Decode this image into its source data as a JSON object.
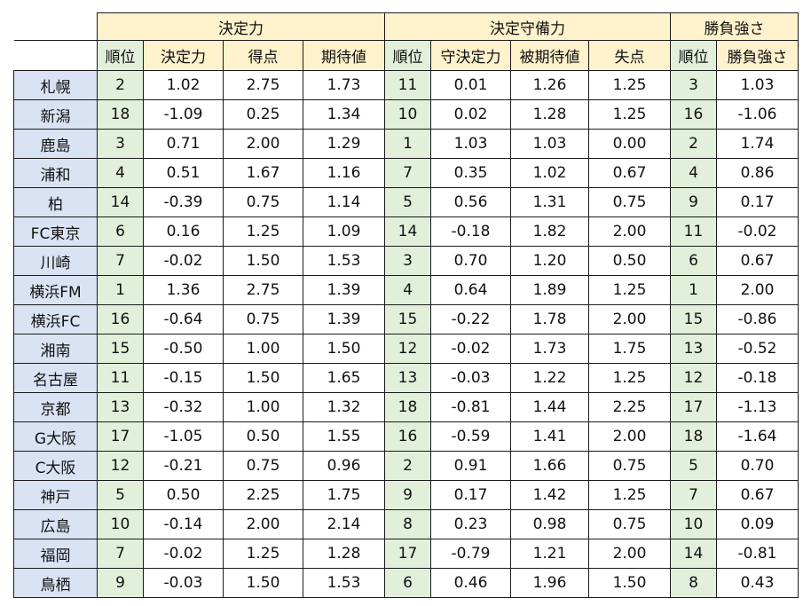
{
  "groups": [
    {
      "label": "決定力",
      "span": 4
    },
    {
      "label": "決定守備力",
      "span": 4
    },
    {
      "label": "勝負強さ",
      "span": 2
    }
  ],
  "subheaders": [
    "順位",
    "決定力",
    "得点",
    "期待値",
    "順位",
    "守決定力",
    "被期待値",
    "失点",
    "順位",
    "勝負強さ"
  ],
  "rows": [
    {
      "team": "札幌",
      "cells": [
        "2",
        "1.02",
        "2.75",
        "1.73",
        "11",
        "0.01",
        "1.26",
        "1.25",
        "3",
        "1.03"
      ]
    },
    {
      "team": "新潟",
      "cells": [
        "18",
        "-1.09",
        "0.25",
        "1.34",
        "10",
        "0.02",
        "1.28",
        "1.25",
        "16",
        "-1.06"
      ]
    },
    {
      "team": "鹿島",
      "cells": [
        "3",
        "0.71",
        "2.00",
        "1.29",
        "1",
        "1.03",
        "1.03",
        "0.00",
        "2",
        "1.74"
      ]
    },
    {
      "team": "浦和",
      "cells": [
        "4",
        "0.51",
        "1.67",
        "1.16",
        "7",
        "0.35",
        "1.02",
        "0.67",
        "4",
        "0.86"
      ]
    },
    {
      "team": "柏",
      "cells": [
        "14",
        "-0.39",
        "0.75",
        "1.14",
        "5",
        "0.56",
        "1.31",
        "0.75",
        "9",
        "0.17"
      ]
    },
    {
      "team": "FC東京",
      "cells": [
        "6",
        "0.16",
        "1.25",
        "1.09",
        "14",
        "-0.18",
        "1.82",
        "2.00",
        "11",
        "-0.02"
      ]
    },
    {
      "team": "川崎",
      "cells": [
        "7",
        "-0.02",
        "1.50",
        "1.53",
        "3",
        "0.70",
        "1.20",
        "0.50",
        "6",
        "0.67"
      ]
    },
    {
      "team": "横浜FM",
      "cells": [
        "1",
        "1.36",
        "2.75",
        "1.39",
        "4",
        "0.64",
        "1.89",
        "1.25",
        "1",
        "2.00"
      ]
    },
    {
      "team": "横浜FC",
      "cells": [
        "16",
        "-0.64",
        "0.75",
        "1.39",
        "15",
        "-0.22",
        "1.78",
        "2.00",
        "15",
        "-0.86"
      ]
    },
    {
      "team": "湘南",
      "cells": [
        "15",
        "-0.50",
        "1.00",
        "1.50",
        "12",
        "-0.02",
        "1.73",
        "1.75",
        "13",
        "-0.52"
      ]
    },
    {
      "team": "名古屋",
      "cells": [
        "11",
        "-0.15",
        "1.50",
        "1.65",
        "13",
        "-0.03",
        "1.22",
        "1.25",
        "12",
        "-0.18"
      ]
    },
    {
      "team": "京都",
      "cells": [
        "13",
        "-0.32",
        "1.00",
        "1.32",
        "18",
        "-0.81",
        "1.44",
        "2.25",
        "17",
        "-1.13"
      ]
    },
    {
      "team": "G大阪",
      "cells": [
        "17",
        "-1.05",
        "0.50",
        "1.55",
        "16",
        "-0.59",
        "1.41",
        "2.00",
        "18",
        "-1.64"
      ]
    },
    {
      "team": "C大阪",
      "cells": [
        "12",
        "-0.21",
        "0.75",
        "0.96",
        "2",
        "0.91",
        "1.66",
        "0.75",
        "5",
        "0.70"
      ]
    },
    {
      "team": "神戸",
      "cells": [
        "5",
        "0.50",
        "2.25",
        "1.75",
        "9",
        "0.17",
        "1.42",
        "1.25",
        "7",
        "0.67"
      ]
    },
    {
      "team": "広島",
      "cells": [
        "10",
        "-0.14",
        "2.00",
        "2.14",
        "8",
        "0.23",
        "0.98",
        "0.75",
        "10",
        "0.09"
      ]
    },
    {
      "team": "福岡",
      "cells": [
        "7",
        "-0.02",
        "1.25",
        "1.28",
        "17",
        "-0.79",
        "1.21",
        "2.00",
        "14",
        "-0.81"
      ]
    },
    {
      "team": "鳥栖",
      "cells": [
        "9",
        "-0.03",
        "1.50",
        "1.53",
        "6",
        "0.46",
        "1.96",
        "1.50",
        "8",
        "0.43"
      ]
    }
  ],
  "colors": {
    "header_bg": "#fff2cc",
    "rank_bg": "#e2efda",
    "team_bg": "#dae3f3",
    "border": "#1a1a1a"
  }
}
